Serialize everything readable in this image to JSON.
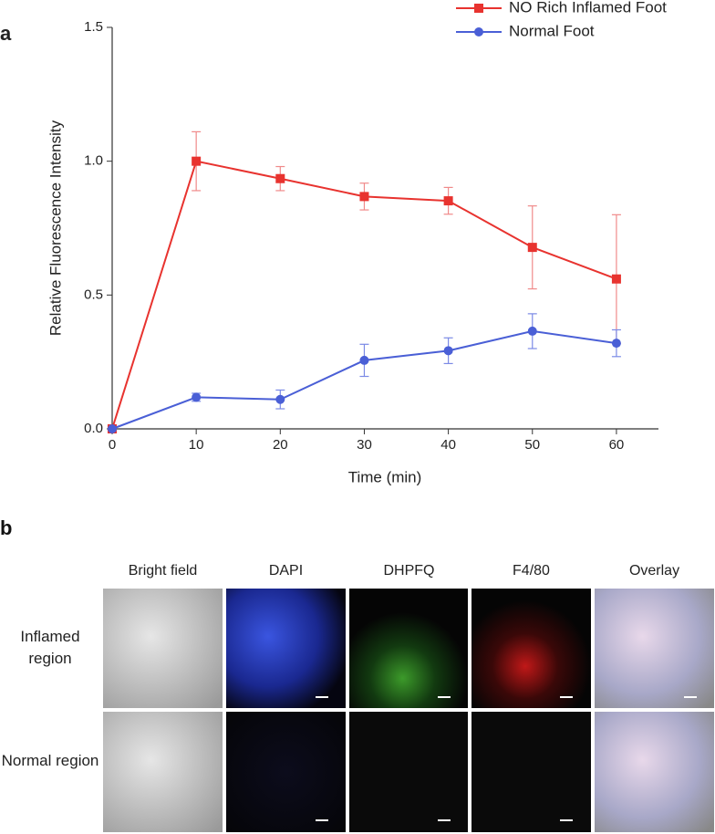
{
  "chart_data": {
    "type": "line",
    "panel_label": "a",
    "x_label": "Time (min)",
    "y_label": "Relative Fluorescence Intensity",
    "x": [
      0,
      10,
      20,
      30,
      40,
      50,
      60
    ],
    "series": [
      {
        "name": "NO Rich Inflamed Foot",
        "color": "#e8332f",
        "error_color": "#f08a8a",
        "marker": "square",
        "values": [
          0,
          1.0,
          0.935,
          0.868,
          0.852,
          0.678,
          0.56
        ],
        "errors": [
          null,
          0.11,
          0.045,
          0.05,
          0.05,
          0.155,
          0.24
        ]
      },
      {
        "name": "Normal Foot",
        "color": "#4a5fd6",
        "error_color": "#7b8ae6",
        "marker": "circle",
        "values": [
          0,
          0.118,
          0.11,
          0.256,
          0.292,
          0.365,
          0.32
        ],
        "errors": [
          null,
          0.015,
          0.035,
          0.06,
          0.048,
          0.065,
          0.05
        ]
      }
    ],
    "xlim": [
      0,
      65
    ],
    "xticks": [
      0,
      10,
      20,
      30,
      40,
      50,
      60
    ],
    "ylim": [
      0,
      1.5
    ],
    "yticks": [
      {
        "value": 0,
        "label": "0.0"
      },
      {
        "value": 0.5,
        "label": "0.5"
      },
      {
        "value": 1,
        "label": "1.0"
      },
      {
        "value": 1.5,
        "label": "1.5"
      }
    ],
    "legend": "upper right"
  },
  "image_grid": {
    "panel_label": "b",
    "columns": [
      "Bright field",
      "DAPI",
      "DHPFQ",
      "F4/80",
      "Overlay"
    ],
    "rows": [
      "Inflamed region",
      "Normal region"
    ]
  }
}
